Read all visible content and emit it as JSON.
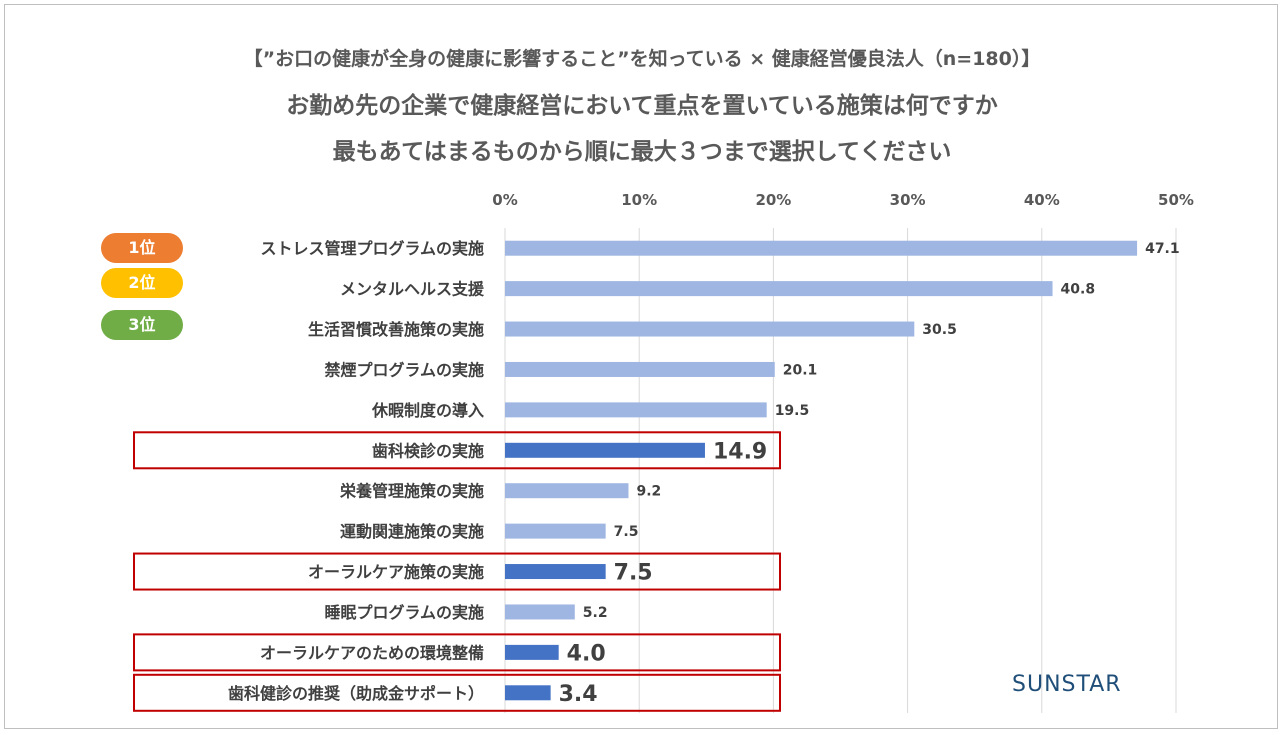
{
  "title": {
    "line1": "【”お口の健康が全身の健康に影響すること”を知っている × 健康経営優良法人（n=180）】",
    "line2": "お勤め先の企業で健康経営において重点を置いている施策は何ですか",
    "line3": "最もあてはまるものから順に最大３つまで選択してください"
  },
  "legend": [
    {
      "label": "1位",
      "color": "#ed7d31"
    },
    {
      "label": "2位",
      "color": "#ffc000"
    },
    {
      "label": "3位",
      "color": "#70ad47"
    }
  ],
  "brand": "SUNSTAR",
  "colors": {
    "bar": "#9fb6e2",
    "bar_highlight": "#4472c4",
    "highlight_box": "#c00000",
    "grid": "#d9d9d9"
  },
  "chart_data": {
    "type": "bar",
    "orientation": "horizontal",
    "xlim": [
      0,
      50
    ],
    "x_ticks": [
      "0%",
      "10%",
      "20%",
      "30%",
      "40%",
      "50%"
    ],
    "grid": true,
    "categories": [
      "ストレス管理プログラムの実施",
      "メンタルヘルス支援",
      "生活習慣改善施策の実施",
      "禁煙プログラムの実施",
      "休暇制度の導入",
      "歯科検診の実施",
      "栄養管理施策の実施",
      "運動関連施策の実施",
      "オーラルケア施策の実施",
      "睡眠プログラムの実施",
      "オーラルケアのための環境整備",
      "歯科健診の推奨（助成金サポート）"
    ],
    "values": [
      47.1,
      40.8,
      30.5,
      20.1,
      19.5,
      14.9,
      9.2,
      7.5,
      7.5,
      5.2,
      4.0,
      3.4
    ],
    "value_labels": [
      "47.1",
      "40.8",
      "30.5",
      "20.1",
      "19.5",
      "14.9",
      "9.2",
      "7.5",
      "7.5",
      "5.2",
      "4.0",
      "3.4"
    ],
    "highlighted": [
      false,
      false,
      false,
      false,
      false,
      true,
      false,
      false,
      true,
      false,
      true,
      true
    ]
  }
}
